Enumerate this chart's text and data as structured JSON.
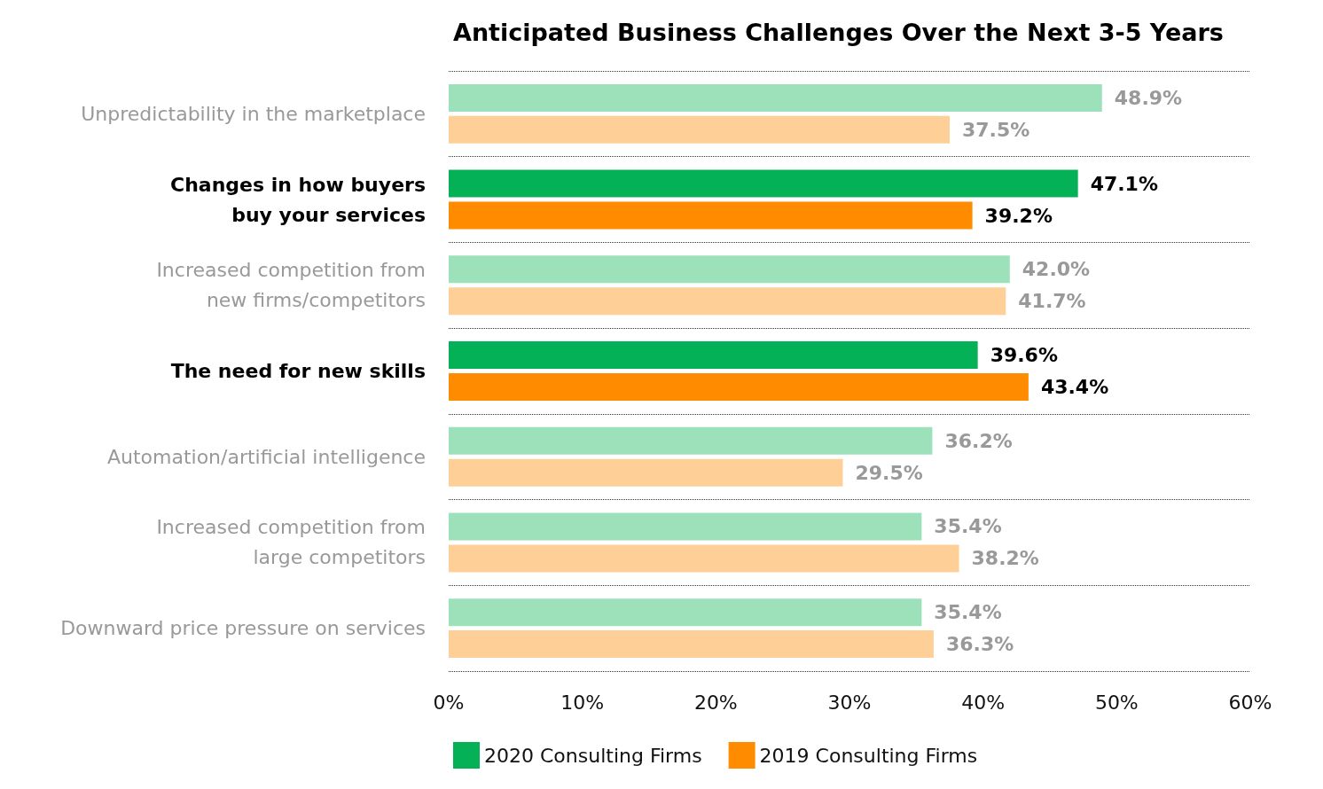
{
  "chart_data": {
    "type": "bar",
    "orientation": "horizontal",
    "title": "Anticipated Business Challenges Over the Next 3-5 Years",
    "categories": [
      "Unpredictability in the marketplace",
      "Changes in how buyers\nbuy your services",
      "Increased competition from\nnew firms/competitors",
      "The need for new skills",
      "Automation/artificial intelligence",
      "Increased competition from\nlarge competitors",
      "Downward price pressure on services"
    ],
    "series": [
      {
        "name": "2020 Consulting Firms",
        "color": "#04b156",
        "colors": [
          "#9de1bb",
          "#04b156",
          "#9de1bb",
          "#04b156",
          "#9de1bb",
          "#9de1bb",
          "#9de1bb"
        ],
        "values": [
          48.9,
          47.1,
          42.0,
          39.6,
          36.2,
          35.4,
          35.4
        ],
        "value_labels": [
          "48.9%",
          "47.1%",
          "42.0%",
          "39.6%",
          "36.2%",
          "35.4%",
          "35.4%"
        ]
      },
      {
        "name": "2019 Consulting Firms",
        "color": "#ff8c00",
        "colors": [
          "#fed098",
          "#ff8c00",
          "#fed098",
          "#ff8c00",
          "#fed098",
          "#fed098",
          "#fed098"
        ],
        "values": [
          37.5,
          39.2,
          41.7,
          43.4,
          29.5,
          38.2,
          36.3
        ],
        "value_labels": [
          "37.5%",
          "39.2%",
          "41.7%",
          "43.4%",
          "29.5%",
          "38.2%",
          "36.3%"
        ]
      }
    ],
    "xlim": [
      0,
      60
    ],
    "xticks": [
      {
        "value": 0,
        "label": "0%"
      },
      {
        "value": 10,
        "label": "10%"
      },
      {
        "value": 20,
        "label": "20%"
      },
      {
        "value": 30,
        "label": "30%"
      },
      {
        "value": 40,
        "label": "40%"
      },
      {
        "value": 50,
        "label": "50%"
      },
      {
        "value": 60,
        "label": "60%"
      }
    ],
    "grid": "y",
    "legend": "bottom left"
  }
}
